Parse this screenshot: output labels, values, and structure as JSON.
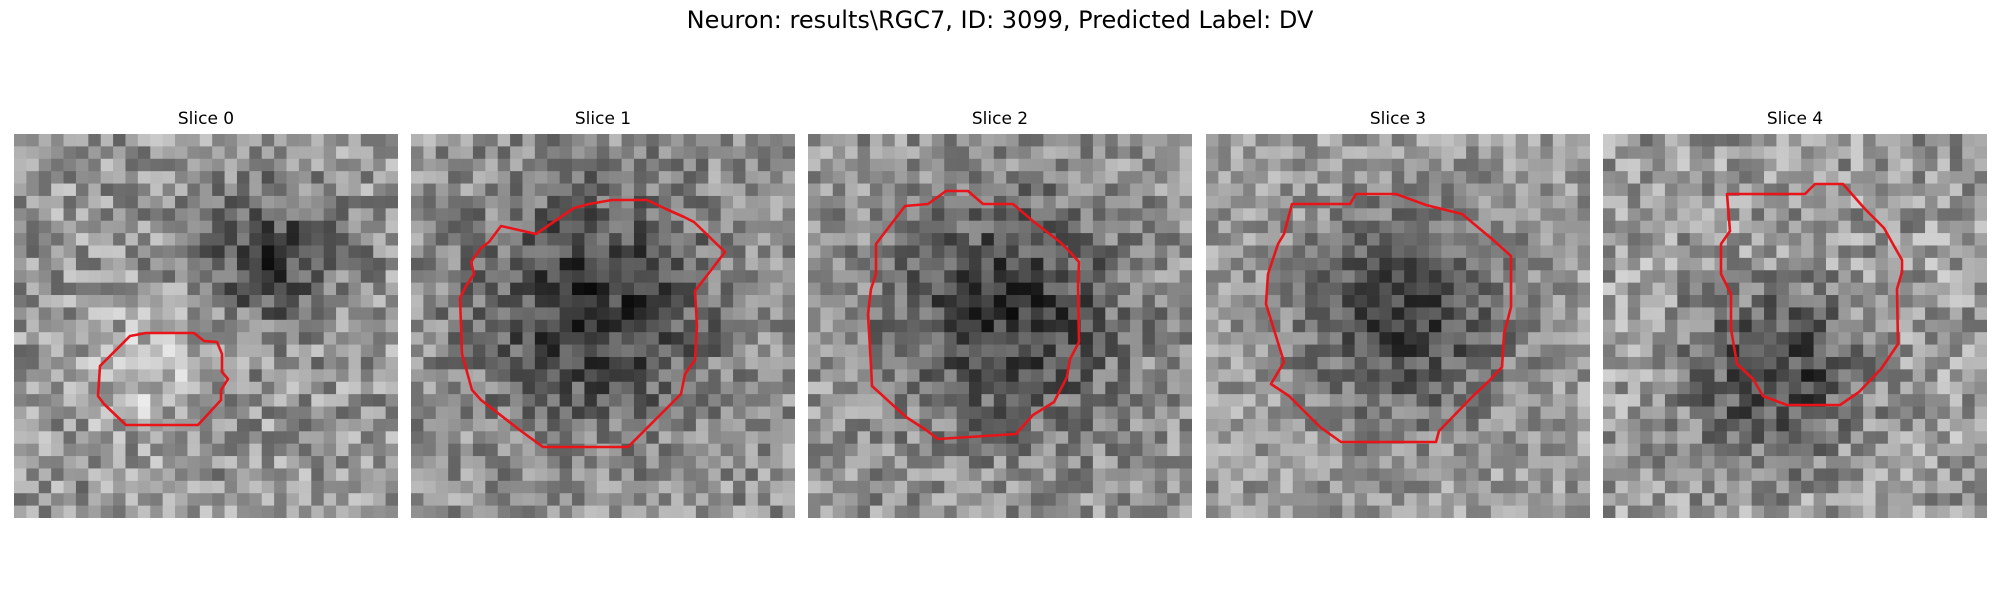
{
  "figure": {
    "title": "Neuron: results\\RGC7, ID: 3099, Predicted Label: DV",
    "contour_color": "#e8141a"
  },
  "panels": [
    {
      "title": "Slice 0",
      "mean": 150,
      "contrast": 55,
      "center": [
        0.5,
        0.5
      ],
      "dark_region": [
        0.68,
        0.32,
        0.22
      ],
      "bright_region": [
        0.34,
        0.62,
        0.18
      ]
    },
    {
      "title": "Slice 1",
      "mean": 140,
      "contrast": 50,
      "dark_region": [
        0.48,
        0.45,
        0.42
      ]
    },
    {
      "title": "Slice 2",
      "mean": 140,
      "contrast": 50,
      "dark_region": [
        0.52,
        0.47,
        0.4
      ]
    },
    {
      "title": "Slice 3",
      "mean": 150,
      "contrast": 45,
      "dark_region": [
        0.52,
        0.47,
        0.38
      ]
    },
    {
      "title": "Slice 4",
      "mean": 150,
      "contrast": 55,
      "dark_region": [
        0.45,
        0.62,
        0.3
      ]
    }
  ]
}
